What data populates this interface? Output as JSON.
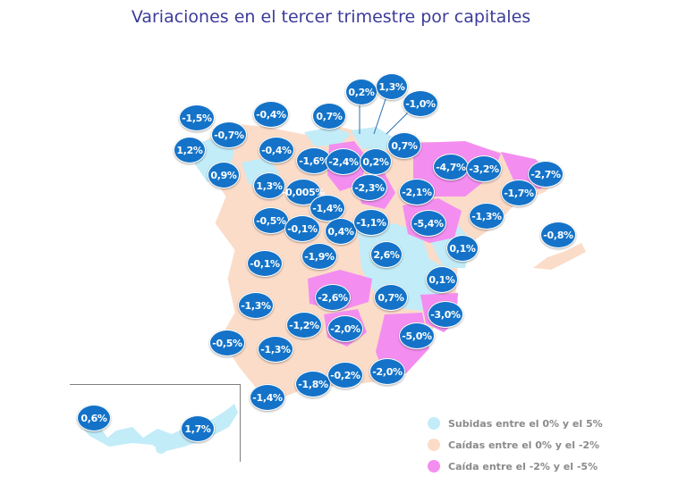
{
  "title": "Variaciones en el tercer trimestre por capitales",
  "colors": {
    "rise": "#c2ecf8",
    "fall_small": "#fbdcc9",
    "fall_large": "#f38ef0",
    "bubble": "#1473c8"
  },
  "legend": [
    {
      "label": "Subidas entre el 0% y el 5%",
      "color": "#c2ecf8"
    },
    {
      "label": "Caídas entre el 0% y el -2%",
      "color": "#fbdcc9"
    },
    {
      "label": "Caída entre el -2% y el -5%",
      "color": "#f38ef0"
    }
  ],
  "bubbles": [
    "-1,5%",
    "-0,7%",
    "-0,4%",
    "0,7%",
    "0,2%",
    "1,3%",
    "-1,0%",
    "1,2%",
    "0,9%",
    "-0,4%",
    "-1,6%",
    "-2,4%",
    "0,2%",
    "0,7%",
    "-4,7%",
    "-3,2%",
    "-2,7%",
    "1,3%",
    "-0,005%",
    "-2,3%",
    "-2,1%",
    "-1,7%",
    "-1,4%",
    "-0,5%",
    "-0,1%",
    "0,4%",
    "-1,1%",
    "-5,4%",
    "-1,3%",
    "0,1%",
    "-0,8%",
    "-0,1%",
    "-1,9%",
    "2,6%",
    "0,1%",
    "-2,6%",
    "0,7%",
    "-1,3%",
    "-3,0%",
    "-1,2%",
    "-2,0%",
    "-5,0%",
    "-0,5%",
    "-1,3%",
    "-1,8%",
    "-0,2%",
    "-2,0%",
    "-1,4%",
    "0,6%",
    "1,7%"
  ]
}
